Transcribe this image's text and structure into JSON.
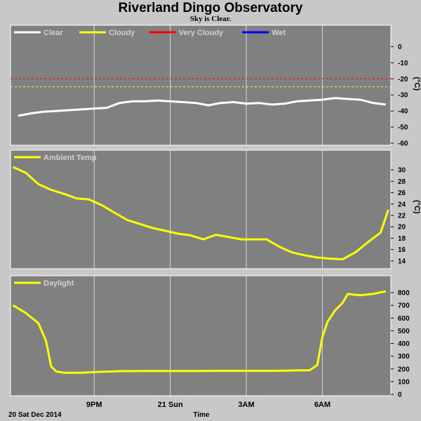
{
  "title": "Riverland Dingo Observatory",
  "subtitle": "Sky is Clear.",
  "date_label": "20 Sat Dec 2014",
  "x_axis_label": "Time",
  "colors": {
    "background": "#c8c8c8",
    "panel": "#808080",
    "clear": "#ffffff",
    "cloudy": "#ffff00",
    "very_cloudy": "#ff0000",
    "wet": "#0000ff"
  },
  "chart_data": [
    {
      "type": "line",
      "panel": "sky",
      "unit": "(°C)",
      "ylim": [
        -60,
        5
      ],
      "yticks": [
        0,
        -10,
        -20,
        -30,
        -40,
        -50,
        -60
      ],
      "thresholds": [
        {
          "name": "Very Cloudy",
          "value": -20,
          "color": "#ff0000"
        },
        {
          "name": "Cloudy",
          "value": -25,
          "color": "#ffff00"
        }
      ],
      "legend": [
        {
          "name": "Clear",
          "color": "#ffffff"
        },
        {
          "name": "Cloudy",
          "color": "#ffff00"
        },
        {
          "name": "Very Cloudy",
          "color": "#ff0000"
        },
        {
          "name": "Wet",
          "color": "#0000ff"
        }
      ],
      "series": [
        {
          "color": "#ffffff",
          "x": [
            18.0,
            18.5,
            19.0,
            19.5,
            20.0,
            20.5,
            21.0,
            21.5,
            22.0,
            22.5,
            23.0,
            23.5,
            24.0,
            24.5,
            25.0,
            25.5,
            26.0,
            26.5,
            27.0,
            27.5,
            28.0,
            28.5,
            29.0,
            29.5,
            30.0,
            30.5,
            31.0,
            31.5,
            32.0,
            32.5
          ],
          "y": [
            -43,
            -41.5,
            -40.5,
            -40,
            -39.5,
            -39,
            -38.5,
            -38,
            -35,
            -34,
            -34,
            -33.5,
            -34,
            -34.5,
            -35,
            -36.5,
            -35,
            -34.5,
            -35.5,
            -35,
            -36,
            -35.5,
            -34,
            -33.5,
            -33,
            -32,
            -32.5,
            -33,
            -35,
            -36
          ]
        }
      ]
    },
    {
      "type": "line",
      "panel": "ambient",
      "unit": "(°C)",
      "ylim": [
        13,
        31.5
      ],
      "yticks": [
        30,
        28,
        26,
        24,
        22,
        20,
        18,
        16,
        14
      ],
      "series": [
        {
          "name": "Ambient Temp",
          "color": "#ffff00",
          "x": [
            17.8,
            18.3,
            18.8,
            19.3,
            19.8,
            20.3,
            20.8,
            21.3,
            21.8,
            22.3,
            22.8,
            23.3,
            23.8,
            24.3,
            24.8,
            25.3,
            25.8,
            26.3,
            26.8,
            27.3,
            27.8,
            28.3,
            28.8,
            29.3,
            29.8,
            30.3,
            30.8,
            31.3,
            31.8,
            32.3,
            32.6
          ],
          "y": [
            30.5,
            29.5,
            27.5,
            26.5,
            25.8,
            25.0,
            24.8,
            23.8,
            22.5,
            21.2,
            20.5,
            19.8,
            19.3,
            18.8,
            18.5,
            17.8,
            18.6,
            18.2,
            17.8,
            17.8,
            17.8,
            16.5,
            15.5,
            15.0,
            14.6,
            14.4,
            14.3,
            15.5,
            17.3,
            19.0,
            23.0
          ]
        }
      ]
    },
    {
      "type": "line",
      "panel": "daylight",
      "unit": "",
      "ylim": [
        0,
        850
      ],
      "yticks": [
        800,
        700,
        600,
        500,
        400,
        300,
        200,
        100,
        0
      ],
      "series": [
        {
          "name": "Daylight",
          "color": "#ffff00",
          "x": [
            17.8,
            18.3,
            18.8,
            19.1,
            19.3,
            19.5,
            19.8,
            20.5,
            21.0,
            22.0,
            23.0,
            24.0,
            25.0,
            26.0,
            27.0,
            28.0,
            28.5,
            29.0,
            29.5,
            29.8,
            30.0,
            30.2,
            30.5,
            30.8,
            31.0,
            31.2,
            31.5,
            32.0,
            32.5
          ],
          "y": [
            700,
            640,
            560,
            420,
            220,
            180,
            170,
            170,
            175,
            182,
            183,
            184,
            184,
            185,
            185,
            185,
            186,
            188,
            190,
            230,
            450,
            570,
            660,
            720,
            790,
            785,
            780,
            790,
            810
          ]
        }
      ]
    }
  ],
  "x_axis": {
    "range": [
      17.7,
      32.7
    ],
    "ticks": [
      {
        "value": 21,
        "label": "9PM"
      },
      {
        "value": 24,
        "label": "21 Sun"
      },
      {
        "value": 27,
        "label": "3AM"
      },
      {
        "value": 30,
        "label": "6AM"
      }
    ]
  }
}
